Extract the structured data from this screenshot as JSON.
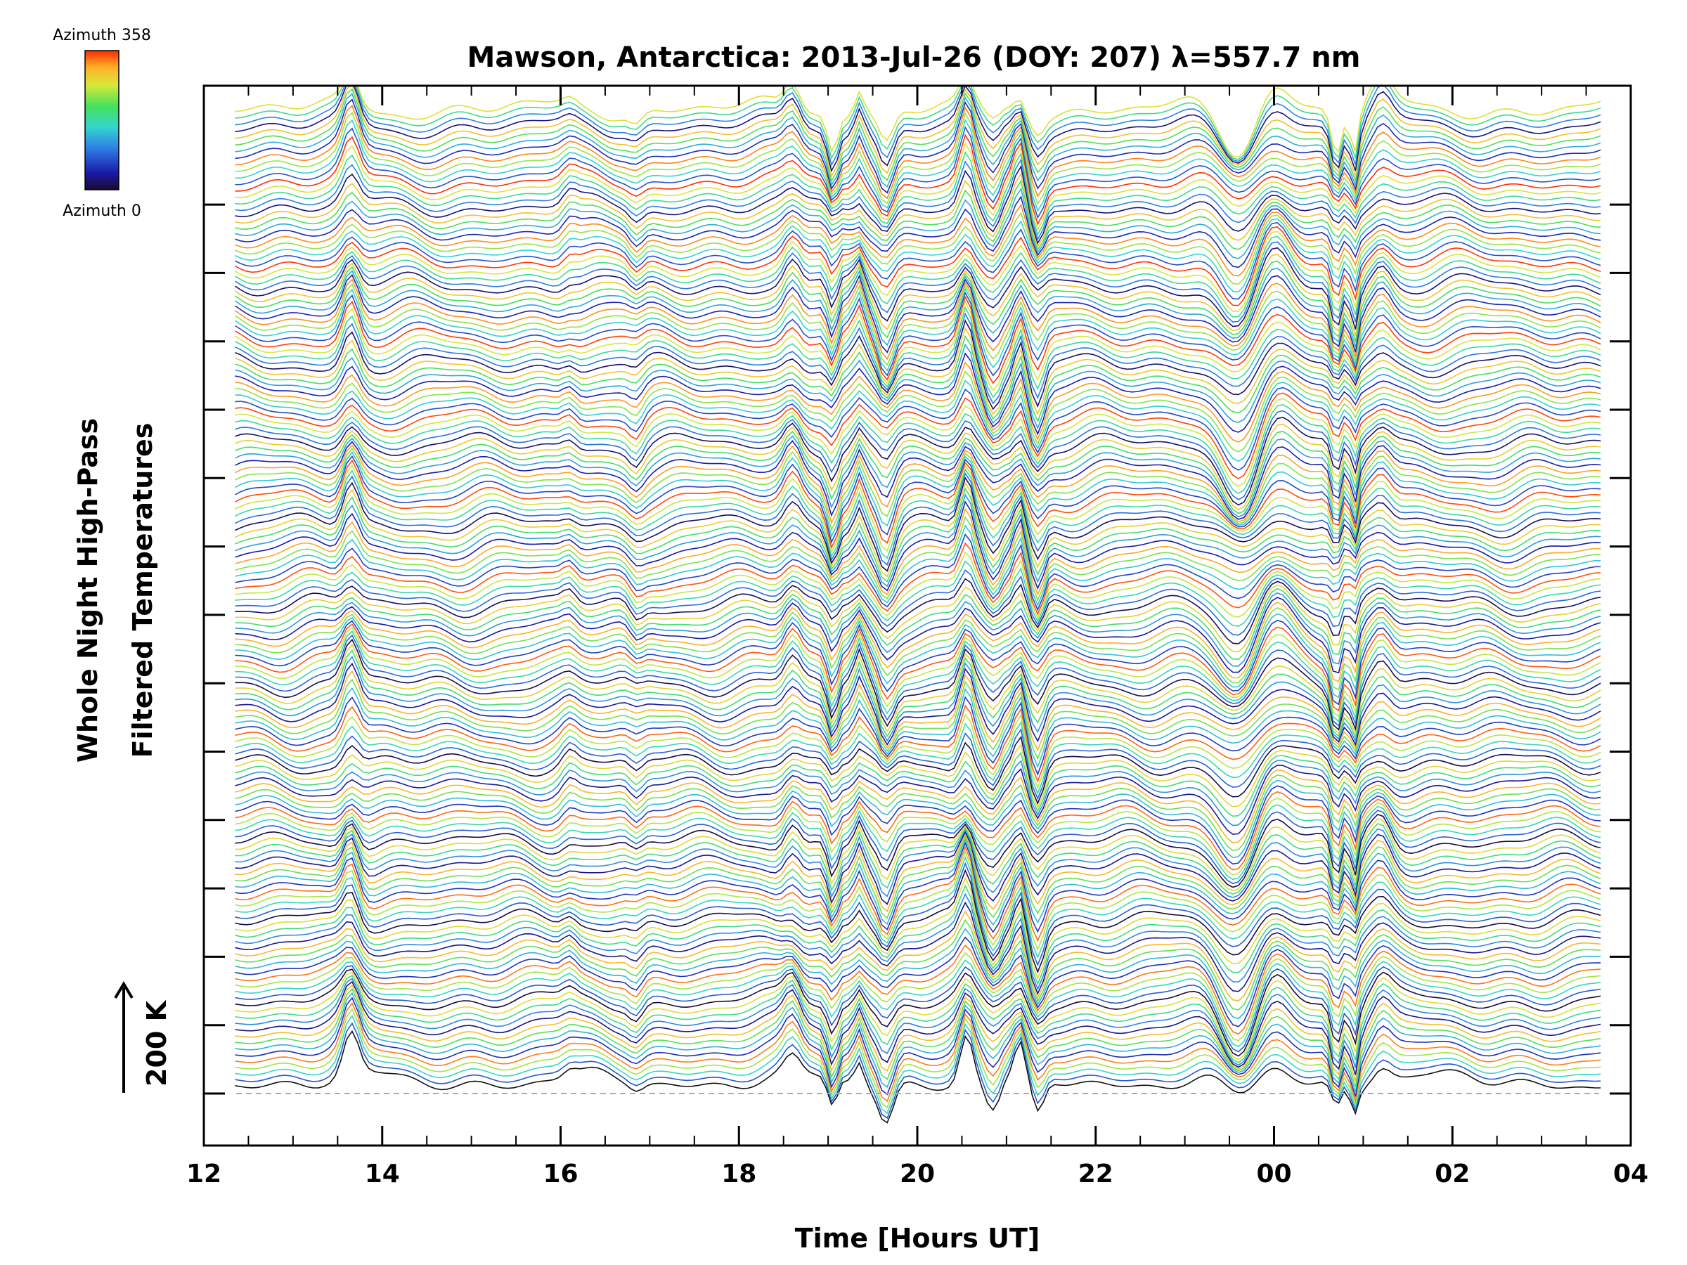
{
  "chart_data": {
    "type": "line",
    "title": "Mawson, Antarctica: 2013-Jul-26 (DOY: 207) λ=557.7 nm",
    "xlabel": "Time [Hours UT]",
    "ylabel_line1": "Whole Night High-Pass",
    "ylabel_line2": "Filtered Temperatures",
    "scale_label": "200 K",
    "x_ticks": [
      "12",
      "14",
      "16",
      "18",
      "20",
      "22",
      "00",
      "02",
      "04"
    ],
    "xlim": [
      12,
      28
    ],
    "x_data_range": [
      12.35,
      27.7
    ],
    "colorbar": {
      "max_label": "Azimuth 358",
      "min_label": "Azimuth 0",
      "colormap": "rainbow",
      "min_color": "#1a0a2e",
      "max_color": "#ff2a00"
    },
    "baseline_style": "dashed gray",
    "series_count": 160,
    "series_description": "stacked high-pass filtered temperature traces, one per azimuth, colored by azimuth 0–358",
    "colors": {
      "axis": "#000000",
      "baseline": "#aaaaaa"
    }
  }
}
